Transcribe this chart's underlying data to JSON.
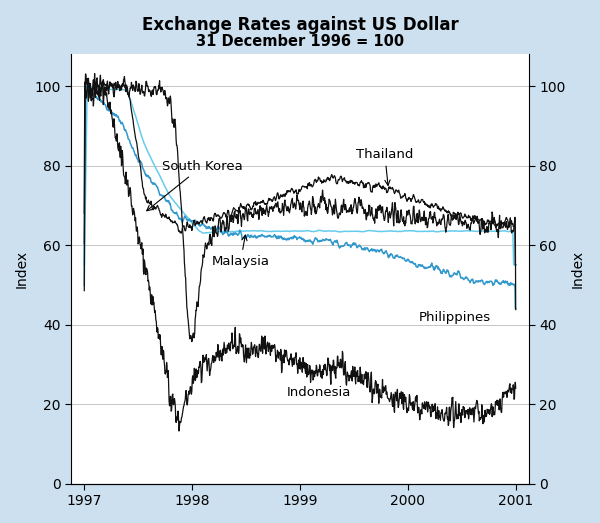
{
  "title": "Exchange Rates against US Dollar",
  "subtitle": "31 December 1996 = 100",
  "ylabel": "Index",
  "bg_color": "#cce0f0",
  "plot_bg": "#ffffff",
  "yticks": [
    0,
    20,
    40,
    60,
    80,
    100
  ],
  "xticks": [
    1997,
    1998,
    1999,
    2000,
    2001
  ],
  "xlim": [
    1996.88,
    2001.12
  ],
  "ylim": [
    0,
    108
  ],
  "series": {
    "Thailand": {
      "color": "#111111",
      "lw": 0.9,
      "zorder": 4
    },
    "South_Korea": {
      "color": "#111111",
      "lw": 0.9,
      "zorder": 5
    },
    "Malaysia": {
      "color": "#66ccee",
      "lw": 1.1,
      "zorder": 3
    },
    "Philippines": {
      "color": "#3399cc",
      "lw": 1.1,
      "zorder": 3
    },
    "Indonesia": {
      "color": "#111111",
      "lw": 0.9,
      "zorder": 6
    }
  },
  "figsize": [
    6.0,
    5.23
  ],
  "dpi": 100
}
